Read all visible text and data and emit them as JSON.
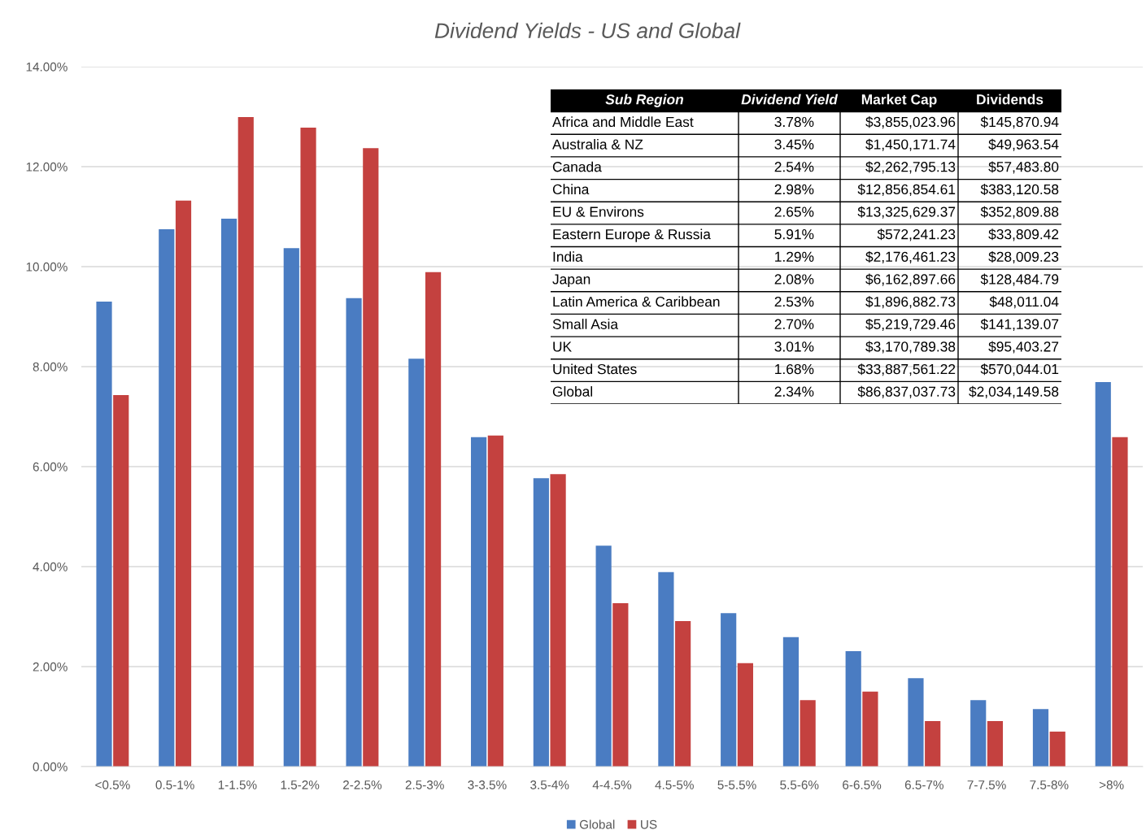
{
  "chart_data": [
    {
      "type": "bar",
      "title": "Dividend Yields - US and Global",
      "categories": [
        "<0.5%",
        "0.5-1%",
        "1-1.5%",
        "1.5-2%",
        "2-2.5%",
        "2.5-3%",
        "3-3.5%",
        "3.5-4%",
        "4-4.5%",
        "4.5-5%",
        "5-5.5%",
        "5.5-6%",
        "6-6.5%",
        "6.5-7%",
        "7-7.5%",
        "7.5-8%",
        ">8%"
      ],
      "series": [
        {
          "name": "Global",
          "color": "#4a7cc2",
          "values": [
            9.3,
            10.75,
            10.96,
            10.37,
            9.37,
            8.16,
            6.59,
            5.77,
            4.42,
            3.89,
            3.07,
            2.59,
            2.31,
            1.77,
            1.33,
            1.15,
            7.69
          ]
        },
        {
          "name": "US",
          "color": "#c4413f",
          "values": [
            7.43,
            11.32,
            12.99,
            12.78,
            12.37,
            9.89,
            6.62,
            5.85,
            3.27,
            2.91,
            2.07,
            1.33,
            1.5,
            0.91,
            0.91,
            0.7,
            6.59
          ]
        }
      ],
      "ylim": [
        0,
        14
      ],
      "yticks": [
        {
          "value": 0,
          "label": "0.00%"
        },
        {
          "value": 2,
          "label": "2.00%"
        },
        {
          "value": 4,
          "label": "4.00%"
        },
        {
          "value": 6,
          "label": "6.00%"
        },
        {
          "value": 8,
          "label": "8.00%"
        },
        {
          "value": 10,
          "label": "10.00%"
        },
        {
          "value": 12,
          "label": "12.00%"
        },
        {
          "value": 14,
          "label": "14.00%"
        }
      ],
      "grid": "y",
      "legend": "bottom"
    },
    {
      "type": "other",
      "categories": [
        "Sub Region",
        "Dividend Yield",
        "Market Cap",
        "Dividends"
      ],
      "y_categories": [
        "Africa and Middle East",
        "Australia & NZ",
        "Canada",
        "China",
        "EU & Environs",
        "Eastern Europe & Russia",
        "India",
        "Japan",
        "Latin America & Caribbean",
        "Small Asia",
        "UK",
        "United States",
        "Global"
      ],
      "cell_labels": [
        [
          "3.78%",
          "$3,855,023.96",
          "$145,870.94"
        ],
        [
          "3.45%",
          "$1,450,171.74",
          "$49,963.54"
        ],
        [
          "2.54%",
          "$2,262,795.13",
          "$57,483.80"
        ],
        [
          "2.98%",
          "$12,856,854.61",
          "$383,120.58"
        ],
        [
          "2.65%",
          "$13,325,629.37",
          "$352,809.88"
        ],
        [
          "5.91%",
          "$572,241.23",
          "$33,809.42"
        ],
        [
          "1.29%",
          "$2,176,461.23",
          "$28,009.23"
        ],
        [
          "2.08%",
          "$6,162,897.66",
          "$128,484.79"
        ],
        [
          "2.53%",
          "$1,896,882.73",
          "$48,011.04"
        ],
        [
          "2.70%",
          "$5,219,729.46",
          "$141,139.07"
        ],
        [
          "3.01%",
          "$3,170,789.38",
          "$95,403.27"
        ],
        [
          "1.68%",
          "$33,887,561.22",
          "$570,044.01"
        ],
        [
          "2.34%",
          "$86,837,037.73",
          "$2,034,149.58"
        ]
      ]
    }
  ]
}
